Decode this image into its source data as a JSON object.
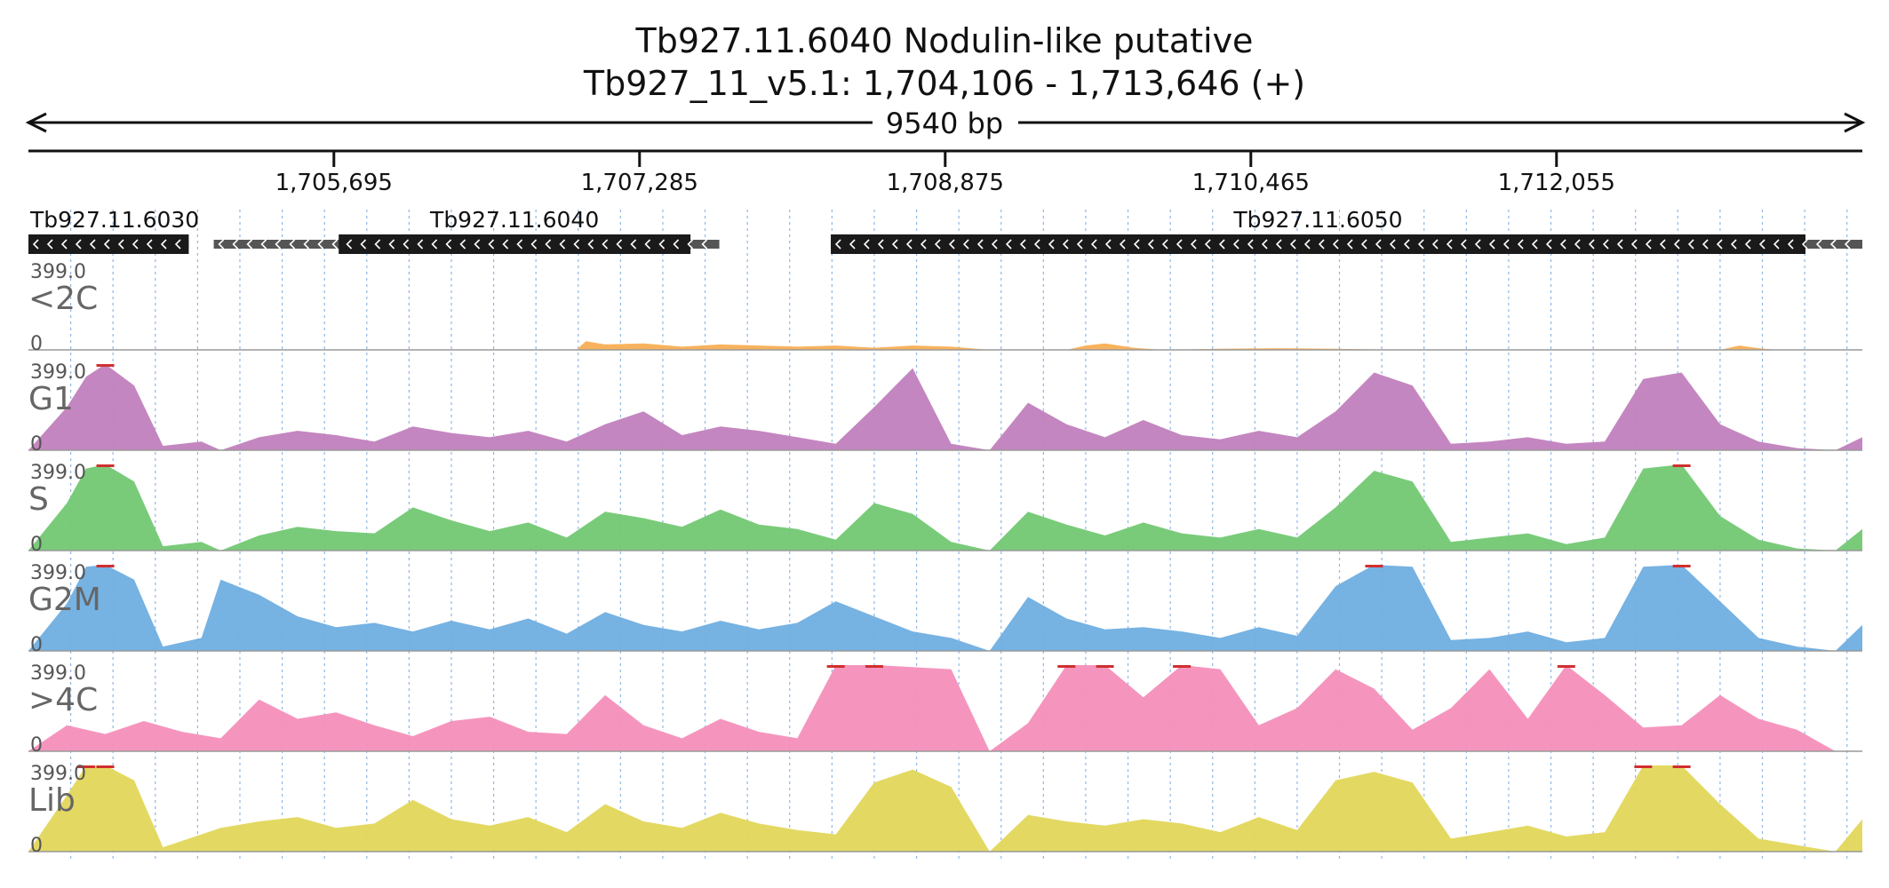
{
  "header": {
    "title_line1": "Tb927.11.6040  Nodulin-like  putative",
    "title_line2": "Tb927_11_v5.1: 1,704,106 - 1,713,646 (+)",
    "span_label": "9540 bp"
  },
  "colors": {
    "lt2C": "#f8ae54",
    "G1": "#c17fbd",
    "S": "#72c873",
    "G2M": "#6faee0",
    "gt4C": "#f48fbb",
    "Lib": "#e2d75a",
    "clip": "#d0302f",
    "gene": "#1a1a1a",
    "grid": "#8fb7e6"
  },
  "chart_data": {
    "type": "area",
    "genome": "Tb927_11_v5.1",
    "region": [
      1704106,
      1713646
    ],
    "ticks": [
      1705695,
      1707285,
      1708875,
      1710465,
      1712055
    ],
    "tick_labels": [
      "1,705,695",
      "1,707,285",
      "1,708,875",
      "1,710,465",
      "1,712,055"
    ],
    "genes": [
      {
        "name": "Tb927.11.6030",
        "strand": "-",
        "start": 1704106,
        "end": 1704940,
        "utr_start": 1704106,
        "utr_end": 1704940,
        "label": "Tb927.11.6030"
      },
      {
        "name": "Tb927.11.6040",
        "strand": "-",
        "start": 1705720,
        "end": 1707550,
        "utr_start": 1705070,
        "utr_end": 1707700,
        "label": "Tb927.11.6040"
      },
      {
        "name": "Tb927.11.6050",
        "strand": "-",
        "start": 1708280,
        "end": 1713350,
        "utr_start": 1708280,
        "utr_end": 1713646,
        "label": "Tb927.11.6050"
      }
    ],
    "ylim": [
      0,
      399.0
    ],
    "ymax_label": "399.0",
    "ymin_label": "0",
    "series": [
      {
        "name": "<2C",
        "color_key": "lt2C",
        "x_kb": [
          0,
          2.85,
          2.9,
          3.0,
          3.2,
          3.4,
          3.6,
          3.8,
          4.0,
          4.2,
          4.4,
          4.6,
          4.8,
          5.0,
          5.4,
          5.5,
          5.6,
          5.75,
          5.9,
          6.2,
          6.5,
          6.8,
          7.2,
          7.6,
          8.0,
          8.4,
          8.6,
          8.8,
          8.9,
          9.0,
          9.1,
          9.2,
          9.3,
          9.4,
          9.54
        ],
        "values": [
          0,
          0,
          40,
          25,
          30,
          15,
          25,
          20,
          15,
          20,
          10,
          20,
          15,
          0,
          0,
          20,
          30,
          10,
          0,
          5,
          8,
          5,
          0,
          0,
          0,
          0,
          0,
          0,
          20,
          8,
          0,
          0,
          0,
          0,
          0
        ]
      },
      {
        "name": "G1",
        "color_key": "G1",
        "x_kb": [
          0,
          0.2,
          0.3,
          0.4,
          0.55,
          0.7,
          0.9,
          1.0,
          1.2,
          1.4,
          1.6,
          1.8,
          2.0,
          2.2,
          2.4,
          2.6,
          2.8,
          3.0,
          3.2,
          3.4,
          3.6,
          3.8,
          4.0,
          4.2,
          4.4,
          4.6,
          4.8,
          5.0,
          5.2,
          5.4,
          5.6,
          5.8,
          6.0,
          6.2,
          6.4,
          6.6,
          6.8,
          7.0,
          7.2,
          7.4,
          7.6,
          7.8,
          8.0,
          8.2,
          8.4,
          8.6,
          8.8,
          9.0,
          9.2,
          9.4,
          9.54
        ],
        "values": [
          0,
          200,
          340,
          400,
          300,
          20,
          40,
          0,
          60,
          90,
          70,
          40,
          110,
          80,
          60,
          90,
          40,
          120,
          180,
          70,
          110,
          90,
          60,
          30,
          200,
          380,
          30,
          0,
          220,
          120,
          60,
          140,
          70,
          50,
          90,
          60,
          180,
          360,
          300,
          30,
          40,
          60,
          30,
          40,
          330,
          360,
          120,
          40,
          10,
          0,
          60
        ]
      },
      {
        "name": "S",
        "color_key": "S",
        "x_kb": [
          0,
          0.2,
          0.3,
          0.4,
          0.55,
          0.7,
          0.9,
          1.0,
          1.2,
          1.4,
          1.6,
          1.8,
          2.0,
          2.2,
          2.4,
          2.6,
          2.8,
          3.0,
          3.2,
          3.4,
          3.6,
          3.8,
          4.0,
          4.2,
          4.4,
          4.6,
          4.8,
          5.0,
          5.2,
          5.4,
          5.6,
          5.8,
          6.0,
          6.2,
          6.4,
          6.6,
          6.8,
          7.0,
          7.2,
          7.4,
          7.6,
          7.8,
          8.0,
          8.2,
          8.4,
          8.6,
          8.8,
          9.0,
          9.2,
          9.4,
          9.54
        ],
        "values": [
          0,
          220,
          380,
          400,
          320,
          20,
          40,
          0,
          70,
          110,
          90,
          80,
          200,
          140,
          90,
          130,
          60,
          180,
          150,
          110,
          190,
          120,
          100,
          50,
          220,
          170,
          40,
          0,
          180,
          120,
          70,
          130,
          80,
          60,
          100,
          60,
          200,
          370,
          320,
          40,
          60,
          80,
          30,
          60,
          380,
          400,
          160,
          50,
          10,
          0,
          100
        ]
      },
      {
        "name": "G2M",
        "color_key": "G2M",
        "x_kb": [
          0,
          0.2,
          0.3,
          0.4,
          0.55,
          0.7,
          0.9,
          1.0,
          1.2,
          1.4,
          1.6,
          1.8,
          2.0,
          2.2,
          2.4,
          2.6,
          2.8,
          3.0,
          3.2,
          3.4,
          3.6,
          3.8,
          4.0,
          4.2,
          4.4,
          4.6,
          4.8,
          5.0,
          5.2,
          5.4,
          5.6,
          5.8,
          6.0,
          6.2,
          6.4,
          6.6,
          6.8,
          7.0,
          7.2,
          7.4,
          7.6,
          7.8,
          8.0,
          8.2,
          8.4,
          8.6,
          8.8,
          9.0,
          9.2,
          9.4,
          9.54
        ],
        "values": [
          0,
          220,
          390,
          400,
          330,
          20,
          60,
          330,
          260,
          160,
          110,
          130,
          90,
          140,
          100,
          150,
          80,
          180,
          120,
          90,
          140,
          100,
          130,
          230,
          160,
          90,
          60,
          0,
          250,
          150,
          100,
          110,
          90,
          60,
          110,
          70,
          300,
          400,
          390,
          50,
          60,
          90,
          40,
          60,
          390,
          400,
          230,
          60,
          20,
          0,
          120
        ]
      },
      {
        "name": ">4C",
        "color_key": "gt4C",
        "x_kb": [
          0,
          0.2,
          0.4,
          0.6,
          0.8,
          1.0,
          1.2,
          1.4,
          1.6,
          1.8,
          2.0,
          2.2,
          2.4,
          2.6,
          2.8,
          3.0,
          3.2,
          3.4,
          3.6,
          3.8,
          4.0,
          4.2,
          4.4,
          4.6,
          4.8,
          5.0,
          5.2,
          5.4,
          5.6,
          5.8,
          6.0,
          6.2,
          6.4,
          6.6,
          6.8,
          7.0,
          7.2,
          7.4,
          7.6,
          7.8,
          8.0,
          8.2,
          8.4,
          8.6,
          8.8,
          9.0,
          9.2,
          9.4,
          9.54
        ],
        "values": [
          0,
          120,
          80,
          140,
          90,
          60,
          240,
          150,
          180,
          120,
          70,
          140,
          160,
          90,
          80,
          260,
          120,
          60,
          150,
          90,
          60,
          400,
          400,
          390,
          380,
          0,
          130,
          400,
          400,
          250,
          400,
          380,
          120,
          200,
          380,
          290,
          100,
          200,
          380,
          150,
          400,
          260,
          110,
          120,
          260,
          150,
          100,
          0,
          0
        ]
      },
      {
        "name": "Lib",
        "color_key": "Lib",
        "x_kb": [
          0,
          0.2,
          0.3,
          0.4,
          0.55,
          0.7,
          0.9,
          1.0,
          1.2,
          1.4,
          1.6,
          1.8,
          2.0,
          2.2,
          2.4,
          2.6,
          2.8,
          3.0,
          3.2,
          3.4,
          3.6,
          3.8,
          4.0,
          4.2,
          4.4,
          4.6,
          4.8,
          5.0,
          5.2,
          5.4,
          5.6,
          5.8,
          6.0,
          6.2,
          6.4,
          6.6,
          6.8,
          7.0,
          7.2,
          7.4,
          7.6,
          7.8,
          8.0,
          8.2,
          8.4,
          8.6,
          8.8,
          9.0,
          9.2,
          9.4,
          9.54
        ],
        "values": [
          0,
          260,
          400,
          400,
          330,
          20,
          80,
          110,
          140,
          160,
          110,
          130,
          240,
          150,
          120,
          160,
          90,
          220,
          140,
          110,
          180,
          130,
          100,
          80,
          320,
          380,
          300,
          0,
          170,
          140,
          120,
          150,
          130,
          90,
          160,
          100,
          330,
          370,
          320,
          60,
          90,
          120,
          70,
          90,
          400,
          400,
          220,
          60,
          30,
          0,
          150
        ]
      }
    ],
    "track_labels": [
      "<2C",
      "G1",
      "S",
      "G2M",
      ">4C",
      "Lib"
    ]
  }
}
